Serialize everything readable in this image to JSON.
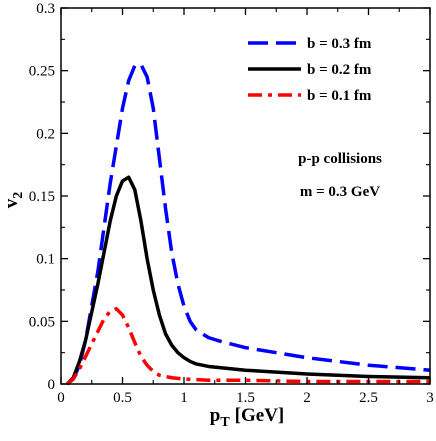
{
  "chart_data": {
    "type": "line",
    "title": "",
    "xlabel": "p",
    "xlabel_sub": "T",
    "xlabel_unit": "[GeV]",
    "ylabel": "v",
    "ylabel_sub": "2",
    "xlim": [
      0,
      3
    ],
    "ylim": [
      0,
      0.3
    ],
    "grid": false,
    "legend_position": "top-right",
    "x_ticks": [
      0,
      0.5,
      1,
      1.5,
      2,
      2.5,
      3
    ],
    "x_tick_labels": [
      "0",
      "0.5",
      "1",
      "1.5",
      "2",
      "2.5",
      "3"
    ],
    "y_ticks": [
      0,
      0.05,
      0.1,
      0.15,
      0.2,
      0.25,
      0.3
    ],
    "y_tick_labels": [
      "0",
      "0.05",
      "0.1",
      "0.15",
      "0.2",
      "0.25",
      "0.3"
    ],
    "annotations": [
      "p-p collisions",
      "m = 0.3 GeV"
    ],
    "series": [
      {
        "name": "b = 0.3 fm",
        "color": "#0000ff",
        "style": "dashed",
        "x": [
          0.05,
          0.1,
          0.15,
          0.2,
          0.3,
          0.4,
          0.5,
          0.55,
          0.6,
          0.65,
          0.7,
          0.75,
          0.8,
          0.85,
          0.9,
          0.95,
          1.0,
          1.05,
          1.1,
          1.2,
          1.3,
          1.5,
          2.0,
          2.5,
          3.0
        ],
        "y": [
          0.0,
          0.004,
          0.015,
          0.035,
          0.09,
          0.16,
          0.22,
          0.242,
          0.254,
          0.255,
          0.245,
          0.22,
          0.18,
          0.14,
          0.105,
          0.08,
          0.062,
          0.05,
          0.043,
          0.037,
          0.034,
          0.029,
          0.021,
          0.015,
          0.011
        ]
      },
      {
        "name": "b = 0.2 fm",
        "color": "#000000",
        "style": "solid",
        "x": [
          0.05,
          0.1,
          0.15,
          0.2,
          0.3,
          0.4,
          0.45,
          0.5,
          0.55,
          0.6,
          0.65,
          0.7,
          0.75,
          0.8,
          0.85,
          0.9,
          0.95,
          1.0,
          1.05,
          1.1,
          1.2,
          1.5,
          2.0,
          2.5,
          3.0
        ],
        "y": [
          0.0,
          0.005,
          0.018,
          0.035,
          0.08,
          0.13,
          0.15,
          0.162,
          0.165,
          0.155,
          0.13,
          0.1,
          0.075,
          0.055,
          0.04,
          0.031,
          0.025,
          0.021,
          0.018,
          0.016,
          0.014,
          0.011,
          0.008,
          0.006,
          0.005
        ]
      },
      {
        "name": "b = 0.1 fm",
        "color": "#ff0000",
        "style": "dashdot",
        "x": [
          0.05,
          0.1,
          0.15,
          0.2,
          0.25,
          0.3,
          0.35,
          0.4,
          0.45,
          0.5,
          0.55,
          0.6,
          0.65,
          0.7,
          0.75,
          0.8,
          0.9,
          1.0,
          1.2,
          1.5,
          2.0,
          2.5,
          3.0
        ],
        "y": [
          0.0,
          0.004,
          0.012,
          0.022,
          0.032,
          0.042,
          0.052,
          0.058,
          0.06,
          0.055,
          0.045,
          0.033,
          0.022,
          0.015,
          0.01,
          0.007,
          0.005,
          0.004,
          0.003,
          0.003,
          0.002,
          0.002,
          0.002
        ]
      }
    ]
  }
}
